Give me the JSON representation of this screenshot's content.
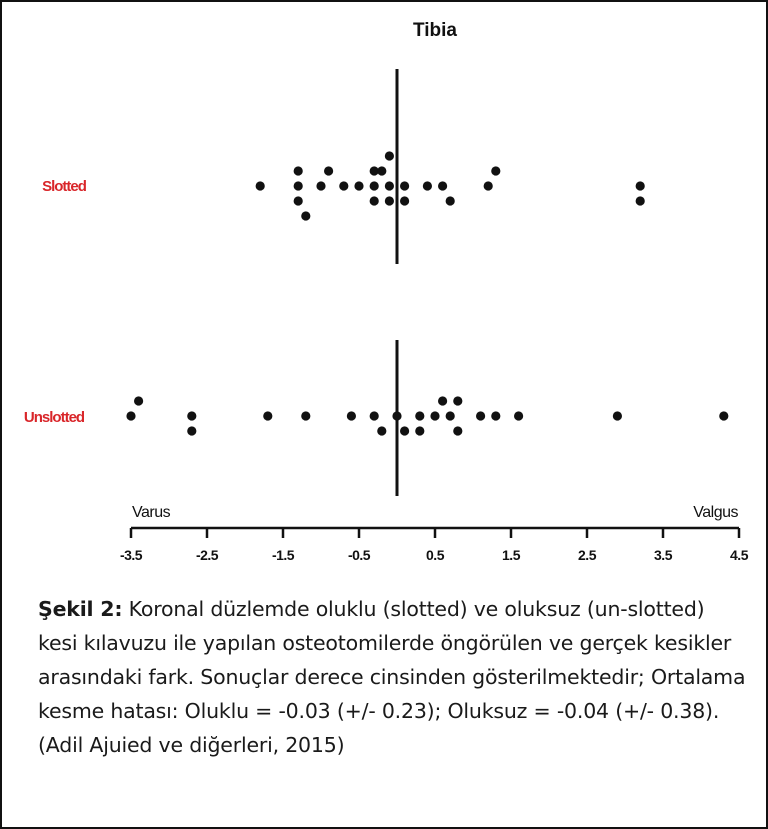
{
  "caption": {
    "lead": "Şekil 2:",
    "text": " Koronal düzlemde oluklu (slotted) ve oluksuz (un-slotted) kesi kılavuzu ile yapılan osteotomilerde öngörülen ve gerçek kesikler arasındaki fark. Sonuçlar derece cinsinden gösterilmektedir; Ortalama kesme hatası: Oluklu = -0.03 (+/- 0.23); Oluksuz = -0.04 (+/- 0.38).  (Adil Ajuied ve diğerleri, 2015)"
  },
  "chart_data": {
    "type": "scatter",
    "title": "Tibia",
    "xlim": [
      -3.5,
      4.5
    ],
    "x_ticks": [
      "-3.5",
      "-2.5",
      "-1.5",
      "-0.5",
      "0.5",
      "1.5",
      "2.5",
      "3.5",
      "4.5"
    ],
    "x_tick_values": [
      -3.5,
      -2.5,
      -1.5,
      -0.5,
      0.5,
      1.5,
      2.5,
      3.5,
      4.5
    ],
    "end_labels": {
      "left": "Varus",
      "right": "Valgus"
    },
    "reference_x": 0,
    "label_color": "#d9262a",
    "marker_color": "#111111",
    "categories": [
      "Slotted",
      "Unslotted"
    ],
    "series": [
      {
        "name": "Slotted",
        "points": [
          [
            -0.1,
            2
          ],
          [
            -0.3,
            1
          ],
          [
            -0.2,
            1
          ],
          [
            -1.3,
            1
          ],
          [
            -0.9,
            1
          ],
          [
            1.3,
            1
          ],
          [
            -1.8,
            0
          ],
          [
            -1.3,
            0
          ],
          [
            -1.0,
            0
          ],
          [
            -0.7,
            0
          ],
          [
            -0.5,
            0
          ],
          [
            -0.3,
            0
          ],
          [
            -0.1,
            0
          ],
          [
            0.1,
            0
          ],
          [
            0.4,
            0
          ],
          [
            0.6,
            0
          ],
          [
            1.2,
            0
          ],
          [
            3.2,
            0
          ],
          [
            -1.3,
            -1
          ],
          [
            -0.3,
            -1
          ],
          [
            -0.1,
            -1
          ],
          [
            0.1,
            -1
          ],
          [
            0.7,
            -1
          ],
          [
            3.2,
            -1
          ],
          [
            -1.2,
            -2
          ]
        ]
      },
      {
        "name": "Unslotted",
        "points": [
          [
            -3.4,
            1
          ],
          [
            0.6,
            1
          ],
          [
            0.8,
            1
          ],
          [
            -3.5,
            0
          ],
          [
            -2.7,
            0
          ],
          [
            -1.7,
            0
          ],
          [
            -1.2,
            0
          ],
          [
            -0.6,
            0
          ],
          [
            -0.3,
            0
          ],
          [
            0.0,
            0
          ],
          [
            0.3,
            0
          ],
          [
            0.5,
            0
          ],
          [
            0.7,
            0
          ],
          [
            1.1,
            0
          ],
          [
            1.3,
            0
          ],
          [
            1.6,
            0
          ],
          [
            2.9,
            0
          ],
          [
            4.3,
            0
          ],
          [
            -2.7,
            -1
          ],
          [
            -0.2,
            -1
          ],
          [
            0.1,
            -1
          ],
          [
            0.3,
            -1
          ],
          [
            0.8,
            -1
          ]
        ]
      }
    ]
  }
}
